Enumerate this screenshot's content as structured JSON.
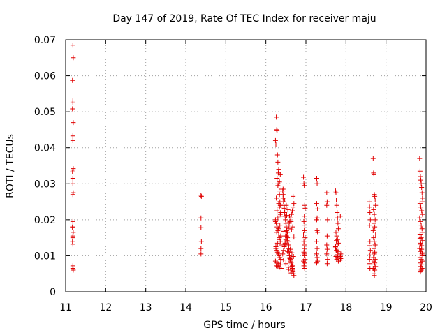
{
  "chart_data": {
    "type": "scatter",
    "title": "Day 147 of 2019, Rate Of TEC Index for receiver maju",
    "xlabel": "GPS time / hours",
    "ylabel": "ROTI / TECUs",
    "xlim": [
      11,
      20
    ],
    "ylim": [
      0,
      0.07
    ],
    "xticks": [
      11,
      12,
      13,
      14,
      15,
      16,
      17,
      18,
      19,
      20
    ],
    "xtick_labels": [
      "11",
      "12",
      "13",
      "14",
      "15",
      "16",
      "17",
      "18",
      "19",
      "20"
    ],
    "yticks": [
      0,
      0.01,
      0.02,
      0.03,
      0.04,
      0.05,
      0.06,
      0.07
    ],
    "ytick_labels": [
      "0",
      "0.01",
      "0.02",
      "0.03",
      "0.04",
      "0.05",
      "0.06",
      "0.07"
    ],
    "grid": true,
    "marker": "+",
    "color": "#e00000",
    "series": [
      {
        "name": "ROTI",
        "x": [
          11.18,
          11.19,
          11.17,
          11.18,
          11.18,
          11.17,
          11.19,
          11.18,
          11.18,
          11.19,
          11.18,
          11.17,
          11.18,
          11.18,
          11.19,
          11.18,
          11.18,
          11.17,
          11.19,
          11.18,
          11.18,
          11.17,
          11.18,
          11.18,
          11.18,
          11.19,
          11.17,
          14.38,
          14.39,
          14.38,
          14.38,
          14.39,
          14.38,
          14.38,
          16.24,
          16.25,
          16.26,
          16.27,
          16.28,
          16.29,
          16.3,
          16.31,
          16.32,
          16.33,
          16.34,
          16.35,
          16.36,
          16.37,
          16.38,
          16.24,
          16.26,
          16.28,
          16.3,
          16.32,
          16.34,
          16.36,
          16.38,
          16.25,
          16.27,
          16.29,
          16.31,
          16.33,
          16.35,
          16.37,
          16.24,
          16.28,
          16.32,
          16.36,
          16.26,
          16.3,
          16.34,
          16.38,
          16.25,
          16.29,
          16.33,
          16.37,
          16.27,
          16.31,
          16.35,
          16.24,
          16.3,
          16.36,
          16.28,
          16.34,
          16.32,
          16.26,
          16.38,
          16.3,
          16.34,
          16.28,
          16.36,
          16.32,
          16.42,
          16.43,
          16.44,
          16.45,
          16.46,
          16.47,
          16.48,
          16.49,
          16.5,
          16.51,
          16.52,
          16.53,
          16.54,
          16.55,
          16.56,
          16.57,
          16.58,
          16.59,
          16.6,
          16.61,
          16.62,
          16.63,
          16.64,
          16.65,
          16.66,
          16.67,
          16.68,
          16.69,
          16.7,
          16.42,
          16.44,
          16.46,
          16.48,
          16.5,
          16.52,
          16.54,
          16.56,
          16.58,
          16.6,
          16.62,
          16.64,
          16.66,
          16.68,
          16.7,
          16.43,
          16.47,
          16.51,
          16.55,
          16.59,
          16.63,
          16.67,
          16.45,
          16.49,
          16.53,
          16.57,
          16.61,
          16.65,
          16.69,
          16.44,
          16.5,
          16.56,
          16.62,
          16.68,
          16.46,
          16.52,
          16.58,
          16.64,
          16.7,
          16.48,
          16.54,
          16.6,
          16.66,
          16.43,
          16.57,
          16.63,
          16.94,
          16.95,
          16.96,
          16.97,
          16.98,
          16.96,
          16.95,
          16.97,
          16.96,
          16.94,
          16.98,
          16.95,
          16.97,
          16.96,
          16.95,
          16.97,
          16.96,
          16.98,
          16.94,
          16.96,
          16.95,
          16.97,
          17.27,
          17.28,
          17.27,
          17.29,
          17.28,
          17.27,
          17.28,
          17.29,
          17.27,
          17.28,
          17.27,
          17.28,
          17.29,
          17.27,
          17.52,
          17.53,
          17.52,
          17.54,
          17.53,
          17.52,
          17.53,
          17.52,
          17.54,
          17.53,
          17.74,
          17.75,
          17.76,
          17.77,
          17.78,
          17.79,
          17.8,
          17.81,
          17.75,
          17.77,
          17.79,
          17.81,
          17.74,
          17.76,
          17.78,
          17.8,
          17.75,
          17.79,
          17.77,
          17.81,
          17.76,
          17.78,
          17.74,
          17.8,
          17.86,
          17.87,
          17.86,
          17.87,
          17.86,
          18.58,
          18.59,
          18.6,
          18.61,
          18.59,
          18.6,
          18.58,
          18.61,
          18.6,
          18.59,
          18.58,
          18.6,
          18.68,
          18.69,
          18.7,
          18.71,
          18.72,
          18.73,
          18.74,
          18.69,
          18.71,
          18.73,
          18.7,
          18.72,
          18.68,
          18.74,
          18.69,
          18.71,
          18.73,
          18.7,
          18.72,
          18.71,
          18.69,
          18.73,
          18.7,
          18.72,
          18.71,
          18.74,
          18.68,
          18.72,
          18.7,
          18.71,
          19.84,
          19.85,
          19.86,
          19.87,
          19.88,
          19.89,
          19.9,
          19.91,
          19.92,
          19.85,
          19.87,
          19.89,
          19.91,
          19.84,
          19.86,
          19.88,
          19.9,
          19.92,
          19.85,
          19.88,
          19.91,
          19.86,
          19.89,
          19.84,
          19.87,
          19.9,
          19.92,
          19.85,
          19.88,
          19.91,
          19.86,
          19.89,
          19.87,
          19.9,
          19.88,
          19.86,
          19.91,
          19.89,
          19.87,
          19.85
        ],
        "y": [
          0.0685,
          0.065,
          0.0587,
          0.053,
          0.0525,
          0.0508,
          0.047,
          0.0433,
          0.042,
          0.0342,
          0.0338,
          0.0333,
          0.0315,
          0.03,
          0.0275,
          0.027,
          0.0195,
          0.0178,
          0.0165,
          0.0155,
          0.015,
          0.014,
          0.0132,
          0.0072,
          0.0065,
          0.006,
          0.018,
          0.0268,
          0.0265,
          0.0205,
          0.0178,
          0.014,
          0.012,
          0.0105,
          0.042,
          0.041,
          0.0485,
          0.045,
          0.0448,
          0.038,
          0.036,
          0.033,
          0.03,
          0.028,
          0.027,
          0.025,
          0.024,
          0.022,
          0.021,
          0.02,
          0.019,
          0.018,
          0.017,
          0.016,
          0.015,
          0.014,
          0.013,
          0.012,
          0.0115,
          0.011,
          0.0105,
          0.01,
          0.0095,
          0.009,
          0.0085,
          0.008,
          0.0078,
          0.0075,
          0.0072,
          0.007,
          0.0068,
          0.0065,
          0.0125,
          0.0135,
          0.0145,
          0.0155,
          0.0165,
          0.0175,
          0.0185,
          0.0195,
          0.0205,
          0.0215,
          0.0225,
          0.0235,
          0.0245,
          0.026,
          0.0285,
          0.0295,
          0.0305,
          0.0315,
          0.0325,
          0.034,
          0.028,
          0.026,
          0.025,
          0.024,
          0.023,
          0.022,
          0.021,
          0.02,
          0.019,
          0.018,
          0.017,
          0.016,
          0.015,
          0.014,
          0.013,
          0.012,
          0.011,
          0.01,
          0.0095,
          0.009,
          0.0085,
          0.008,
          0.0075,
          0.007,
          0.0065,
          0.006,
          0.0055,
          0.005,
          0.0045,
          0.0105,
          0.0115,
          0.0125,
          0.0135,
          0.0145,
          0.0155,
          0.0165,
          0.0175,
          0.0185,
          0.0195,
          0.0205,
          0.0215,
          0.0225,
          0.0235,
          0.0245,
          0.027,
          0.0255,
          0.024,
          0.0228,
          0.021,
          0.0195,
          0.018,
          0.0168,
          0.0155,
          0.0142,
          0.013,
          0.0118,
          0.0108,
          0.0098,
          0.0088,
          0.0078,
          0.0068,
          0.0058,
          0.0265,
          0.0232,
          0.0212,
          0.0192,
          0.0172,
          0.0152,
          0.0132,
          0.0112,
          0.0092,
          0.0072,
          0.0285,
          0.0062,
          0.0052,
          0.0318,
          0.03,
          0.0295,
          0.024,
          0.0232,
          0.021,
          0.0195,
          0.0185,
          0.017,
          0.016,
          0.015,
          0.014,
          0.013,
          0.012,
          0.011,
          0.0105,
          0.01,
          0.009,
          0.0085,
          0.008,
          0.0072,
          0.0065,
          0.0315,
          0.03,
          0.0245,
          0.023,
          0.0205,
          0.02,
          0.017,
          0.0165,
          0.014,
          0.012,
          0.0105,
          0.0095,
          0.0085,
          0.008,
          0.0275,
          0.025,
          0.024,
          0.02,
          0.0155,
          0.013,
          0.0118,
          0.0105,
          0.009,
          0.0078,
          0.028,
          0.0275,
          0.0255,
          0.024,
          0.022,
          0.0205,
          0.019,
          0.0175,
          0.0165,
          0.0155,
          0.0145,
          0.0135,
          0.0125,
          0.0115,
          0.0108,
          0.0102,
          0.0098,
          0.0095,
          0.009,
          0.0085,
          0.0142,
          0.0132,
          0.0122,
          0.0112,
          0.021,
          0.0105,
          0.0098,
          0.0092,
          0.0088,
          0.025,
          0.0235,
          0.022,
          0.02,
          0.0185,
          0.014,
          0.0128,
          0.0115,
          0.0102,
          0.009,
          0.0078,
          0.0065,
          0.037,
          0.033,
          0.0325,
          0.027,
          0.0265,
          0.0255,
          0.024,
          0.0228,
          0.0215,
          0.02,
          0.019,
          0.018,
          0.017,
          0.016,
          0.015,
          0.014,
          0.013,
          0.012,
          0.011,
          0.0105,
          0.0095,
          0.009,
          0.0085,
          0.008,
          0.0075,
          0.007,
          0.0065,
          0.006,
          0.005,
          0.0045,
          0.037,
          0.0335,
          0.032,
          0.031,
          0.03,
          0.029,
          0.0275,
          0.026,
          0.025,
          0.0245,
          0.0235,
          0.0225,
          0.0215,
          0.0205,
          0.0195,
          0.0185,
          0.0175,
          0.0165,
          0.0158,
          0.015,
          0.0142,
          0.0135,
          0.0128,
          0.012,
          0.0112,
          0.0105,
          0.01,
          0.0095,
          0.009,
          0.0085,
          0.008,
          0.0075,
          0.007,
          0.0065,
          0.006,
          0.0055,
          0.0108,
          0.0118,
          0.0132,
          0.0148
        ]
      }
    ]
  }
}
